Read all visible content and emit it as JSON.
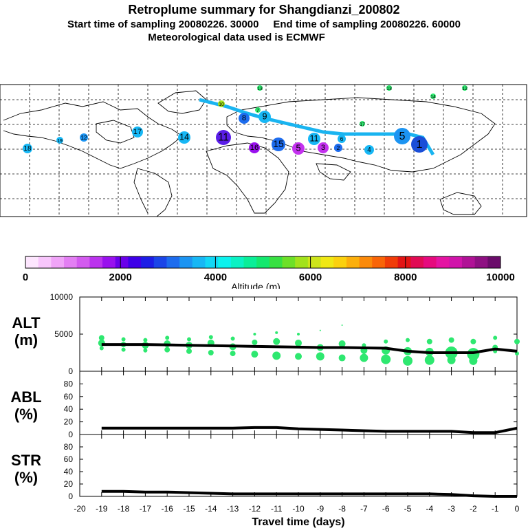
{
  "header": {
    "title": "Retroplume summary for Shangdianzi_200802",
    "sampling_line": "Start time of sampling 20080226. 30000     End time of sampling 20080226. 60000",
    "met_line": "Meteorological data used is ECMWF"
  },
  "colors": {
    "trajectory": "#19b4f0",
    "alt_points": "#2ee870",
    "line": "#000000"
  },
  "colorbar": {
    "label": "Altitude (m)",
    "ticks": [
      "0",
      "2000",
      "4000",
      "6000",
      "8000",
      "10000"
    ],
    "max": 10000,
    "colors": [
      "#fde6fe",
      "#f8c6fc",
      "#f0a4f8",
      "#e37ff3",
      "#d35bef",
      "#bb33ee",
      "#9911ee",
      "#6a00ea",
      "#3e00e8",
      "#1d1de6",
      "#1b45e8",
      "#1d6cee",
      "#1c94f2",
      "#17b7f5",
      "#12d7f6",
      "#0cf2ee",
      "#0af2c4",
      "#0aee98",
      "#13e86e",
      "#38e042",
      "#6de028",
      "#a2e21c",
      "#cde41a",
      "#f0e814",
      "#fbd10e",
      "#fcaf0c",
      "#fb8a0a",
      "#f96508",
      "#f03c08",
      "#e21414",
      "#e10b54",
      "#e60a7e",
      "#e414a2",
      "#d014aa",
      "#b01296",
      "#8e1082",
      "#6a0c6a"
    ]
  },
  "map": {
    "labels": [
      {
        "t": "1",
        "col": "#1a4ed8"
      },
      {
        "t": "2",
        "col": "#1d6cee"
      },
      {
        "t": "3",
        "col": "#c432ef"
      },
      {
        "t": "4",
        "col": "#17b7f5"
      },
      {
        "t": "5",
        "col": "#1c94f2"
      },
      {
        "t": "5",
        "col": "#c432ef"
      },
      {
        "t": "6",
        "col": "#17b7f5"
      },
      {
        "t": "7",
        "col": "#2ee870"
      },
      {
        "t": "8",
        "col": "#1d6cee"
      },
      {
        "t": "9",
        "col": "#17b7f5"
      },
      {
        "t": "10",
        "col": "#a2e21c"
      },
      {
        "t": "11",
        "col": "#5a1ee8"
      },
      {
        "t": "11",
        "col": "#17b7f5"
      },
      {
        "t": "12",
        "col": "#1c94f2"
      },
      {
        "t": "13",
        "col": "#2ee870"
      },
      {
        "t": "14",
        "col": "#17b7f5"
      },
      {
        "t": "15",
        "col": "#1d6cee"
      },
      {
        "t": "16",
        "col": "#9911ee"
      },
      {
        "t": "17",
        "col": "#17b7f5"
      },
      {
        "t": "18",
        "col": "#17b7f5"
      },
      {
        "t": "19",
        "col": "#17b7f5"
      },
      {
        "t": "13",
        "col": "#2ee870"
      },
      {
        "t": "12",
        "col": "#2ee870"
      },
      {
        "t": "17",
        "col": "#2ee870"
      },
      {
        "t": "14",
        "col": "#2ee870"
      }
    ]
  },
  "chart_data": {
    "type": "line",
    "xlabel": "Travel time (days)",
    "x_ticks": [
      "-20",
      "-19",
      "-18",
      "-17",
      "-16",
      "-15",
      "-14",
      "-13",
      "-12",
      "-11",
      "-10",
      "-9",
      "-8",
      "-7",
      "-6",
      "-5",
      "-4",
      "-3",
      "-2",
      "-1",
      "0"
    ],
    "x_tick_values": [
      -20,
      -19,
      -18,
      -17,
      -16,
      -15,
      -14,
      -13,
      -12,
      -11,
      -10,
      -9,
      -8,
      -7,
      -6,
      -5,
      -4,
      -3,
      -2,
      -1,
      0
    ],
    "xlim": [
      -20,
      0
    ],
    "panels": [
      {
        "id": "alt",
        "label_line1": "ALT",
        "label_line2": "(m)",
        "ylim": [
          0,
          10000
        ],
        "y_ticks": [
          "0",
          "5000",
          "10000"
        ],
        "y_tick_values": [
          0,
          5000,
          10000
        ],
        "x": [
          -19,
          -18,
          -17,
          -16,
          -15,
          -14,
          -13,
          -12,
          -11,
          -10,
          -9,
          -8,
          -7,
          -6,
          -5,
          -4,
          -3,
          -2,
          -1,
          0
        ],
        "mean": [
          3600,
          3600,
          3600,
          3550,
          3500,
          3450,
          3400,
          3350,
          3300,
          3250,
          3200,
          3200,
          3150,
          3100,
          2700,
          2500,
          2500,
          2500,
          3000,
          2700
        ],
        "scatter_x": [
          -19,
          -19,
          -19,
          -18,
          -18,
          -18,
          -17,
          -17,
          -17,
          -16,
          -16,
          -16,
          -15,
          -15,
          -15,
          -14,
          -14,
          -14,
          -13,
          -13,
          -13,
          -12,
          -12,
          -12,
          -11,
          -11,
          -11,
          -10,
          -10,
          -10,
          -9,
          -9,
          -9,
          -8,
          -8,
          -8,
          -7,
          -7,
          -7,
          -6,
          -6,
          -6,
          -5,
          -5,
          -5,
          -4,
          -4,
          -4,
          -3,
          -3,
          -3,
          -2,
          -2,
          -2,
          -1,
          -1,
          -1,
          0,
          0
        ],
        "scatter_y": [
          4500,
          3800,
          3100,
          4300,
          3600,
          2900,
          4200,
          3500,
          2800,
          4500,
          3700,
          2900,
          4300,
          3500,
          2700,
          4600,
          3800,
          2500,
          4400,
          3300,
          2400,
          5000,
          3900,
          2300,
          5200,
          4000,
          2100,
          5000,
          3800,
          2000,
          5500,
          3200,
          2000,
          6200,
          3700,
          1800,
          3500,
          2800,
          1800,
          4000,
          2800,
          1600,
          4200,
          2700,
          1400,
          4000,
          2600,
          1500,
          4200,
          2500,
          1500,
          4000,
          2300,
          1400,
          4500,
          3200,
          2700,
          4000,
          2400
        ],
        "scatter_r": [
          4,
          5,
          3,
          3,
          4,
          3,
          3,
          5,
          3,
          3,
          5,
          4,
          3,
          5,
          4,
          3,
          5,
          4,
          3,
          5,
          4,
          2,
          4,
          5,
          2,
          5,
          6,
          2,
          5,
          5,
          1,
          5,
          6,
          1,
          5,
          5,
          3,
          5,
          6,
          3,
          6,
          7,
          3,
          6,
          7,
          4,
          6,
          7,
          4,
          9,
          6,
          4,
          9,
          6,
          3,
          4,
          3,
          4,
          3
        ]
      },
      {
        "id": "abl",
        "label_line1": "ABL",
        "label_line2": "(%)",
        "ylim": [
          0,
          100
        ],
        "y_ticks": [
          "0",
          "20",
          "40",
          "60",
          "80"
        ],
        "y_tick_values": [
          0,
          20,
          40,
          60,
          80
        ],
        "x": [
          -19,
          -18,
          -17,
          -16,
          -15,
          -14,
          -13,
          -12,
          -11,
          -10,
          -9,
          -8,
          -7,
          -6,
          -5,
          -4,
          -3,
          -2,
          -1,
          0
        ],
        "mean": [
          10,
          10,
          10,
          10,
          10,
          10,
          10,
          11,
          11,
          9,
          8,
          7,
          6,
          5,
          5,
          5,
          5,
          3,
          3,
          10
        ]
      },
      {
        "id": "str",
        "label_line1": "STR",
        "label_line2": "(%)",
        "ylim": [
          0,
          100
        ],
        "y_ticks": [
          "0",
          "20",
          "40",
          "60",
          "80"
        ],
        "y_tick_values": [
          0,
          20,
          40,
          60,
          80
        ],
        "x": [
          -19,
          -18,
          -17,
          -16,
          -15,
          -14,
          -13,
          -12,
          -11,
          -10,
          -9,
          -8,
          -7,
          -6,
          -5,
          -4,
          -3,
          -2,
          -1,
          0
        ],
        "mean": [
          8,
          8,
          7,
          7,
          6,
          5,
          4,
          4,
          4,
          4,
          4,
          4,
          4,
          4,
          4,
          4,
          3,
          1,
          0,
          0
        ]
      }
    ]
  }
}
